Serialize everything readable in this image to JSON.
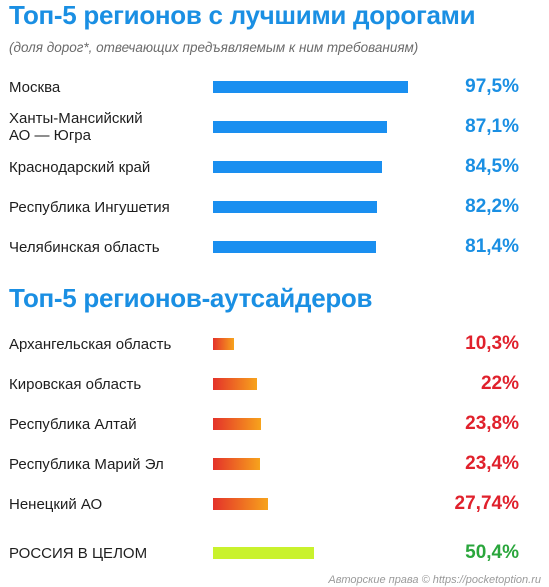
{
  "chart_data": {
    "type": "bar",
    "orientation": "horizontal",
    "title": "Топ-5 регионов с лучшими дорогами",
    "subtitle": "(доля дорог*, отвечающих предъявляемым к ним требованиям)",
    "xlim": [
      0,
      100
    ],
    "groups": [
      {
        "title": "Топ-5 регионов с лучшими дорогами",
        "style": "top",
        "color": "#1a8fe3",
        "items": [
          {
            "label": "Москва",
            "value": 97.5,
            "value_label": "97,5%"
          },
          {
            "label": "Ханты-Мансийский\nАО — Югра",
            "value": 87.1,
            "value_label": "87,1%"
          },
          {
            "label": "Краснодарский край",
            "value": 84.5,
            "value_label": "84,5%"
          },
          {
            "label": "Республика Ингушетия",
            "value": 82.2,
            "value_label": "82,2%"
          },
          {
            "label": "Челябинская область",
            "value": 81.4,
            "value_label": "81,4%"
          }
        ]
      },
      {
        "title": "Топ-5 регионов-аутсайдеров",
        "style": "bottom",
        "color": "#e0212c",
        "items": [
          {
            "label": "Архангельская область",
            "value": 10.3,
            "value_label": "10,3%"
          },
          {
            "label": "Кировская область",
            "value": 22,
            "value_label": "22%"
          },
          {
            "label": "Республика Алтай",
            "value": 23.8,
            "value_label": "23,8%"
          },
          {
            "label": "Республика Марий Эл",
            "value": 23.4,
            "value_label": "23,4%"
          },
          {
            "label": "Ненецкий АО",
            "value": 27.74,
            "value_label": "27,74%"
          }
        ]
      },
      {
        "title": "",
        "style": "total",
        "color": "#c9f22d",
        "items": [
          {
            "label": "РОССИЯ В ЦЕЛОМ",
            "value": 50.4,
            "value_label": "50,4%"
          }
        ]
      }
    ]
  },
  "watermark": "Авторские права © https://pocketoption.ru"
}
